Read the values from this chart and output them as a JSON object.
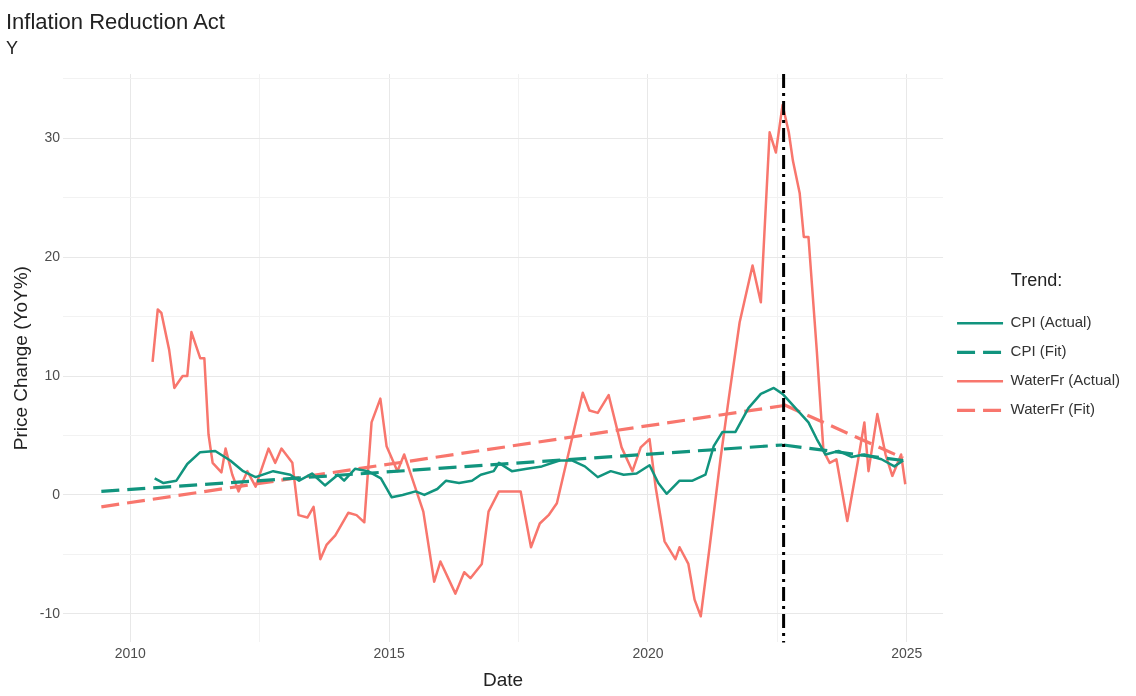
{
  "chart_data": {
    "type": "line",
    "title": "Inflation Reduction Act",
    "subtitle": "Y",
    "xlabel": "Date",
    "ylabel": "Price Change (YoY%)",
    "legend_title": "Trend:",
    "legend": "right",
    "grid": true,
    "marker": "none",
    "xlim": [
      2008.7,
      2025.7
    ],
    "ylim": [
      -12.4,
      35.4
    ],
    "xticks": [
      2010,
      {
        "value": 2012.5,
        "label": null
      },
      2015,
      {
        "value": 2017.5,
        "label": null
      },
      2020,
      {
        "value": 2022.5,
        "label": null
      },
      2025
    ],
    "yticks": [
      -10,
      {
        "value": -5,
        "label": null
      },
      0,
      {
        "value": 5,
        "label": null
      },
      10,
      {
        "value": 15,
        "label": null
      },
      20,
      {
        "value": 25,
        "label": null
      },
      30,
      {
        "value": 35,
        "label": null
      }
    ],
    "ref_lines": [
      {
        "axis": "x",
        "value": 2022.62,
        "color": "#000000",
        "line_style": "dashdot"
      }
    ],
    "series": [
      {
        "name": "CPI (Actual)",
        "color": "#11947e",
        "line_style": "solid",
        "x": [
          2010.47,
          2010.64,
          2010.89,
          2011.1,
          2011.35,
          2011.64,
          2011.93,
          2012.18,
          2012.42,
          2012.76,
          2013.09,
          2013.26,
          2013.51,
          2013.76,
          2014.01,
          2014.13,
          2014.34,
          2014.59,
          2014.84,
          2015.05,
          2015.26,
          2015.51,
          2015.68,
          2015.93,
          2016.1,
          2016.35,
          2016.6,
          2016.77,
          2017.02,
          2017.12,
          2017.37,
          2017.66,
          2017.95,
          2018.29,
          2018.53,
          2018.78,
          2019.03,
          2019.28,
          2019.53,
          2019.78,
          2020.03,
          2020.2,
          2020.36,
          2020.61,
          2020.86,
          2021.11,
          2021.27,
          2021.44,
          2021.69,
          2021.94,
          2022.18,
          2022.43,
          2022.6,
          2022.85,
          2023.1,
          2023.26,
          2023.43,
          2023.68,
          2023.93,
          2024.18,
          2024.51,
          2024.76,
          2024.93
        ],
        "values": [
          1.4,
          1.0,
          1.2,
          2.6,
          3.6,
          3.7,
          2.9,
          2.0,
          1.5,
          2.0,
          1.7,
          1.2,
          1.8,
          0.8,
          1.7,
          1.2,
          2.2,
          2.0,
          1.4,
          -0.2,
          0.0,
          0.3,
          0.0,
          0.5,
          1.2,
          1.0,
          1.2,
          1.7,
          2.0,
          2.7,
          2.0,
          2.2,
          2.4,
          2.9,
          2.9,
          2.4,
          1.5,
          2.0,
          1.7,
          1.8,
          2.5,
          1.0,
          0.1,
          1.2,
          1.2,
          1.7,
          4.1,
          5.3,
          5.3,
          7.3,
          8.5,
          9.0,
          8.5,
          7.3,
          6.1,
          4.7,
          3.4,
          3.7,
          3.2,
          3.4,
          3.0,
          2.4,
          2.9
        ]
      },
      {
        "name": "CPI (Fit)",
        "color": "#11947e",
        "line_style": "dashed",
        "x": [
          2009.44,
          2022.6,
          null,
          2022.62,
          2024.93
        ],
        "values": [
          0.3,
          4.2,
          null,
          4.2,
          2.9
        ]
      },
      {
        "name": "WaterFr (Actual)",
        "color": "#f8766d",
        "line_style": "solid",
        "x": [
          2010.43,
          2010.53,
          2010.6,
          2010.75,
          2010.85,
          2011.01,
          2011.1,
          2011.18,
          2011.35,
          2011.43,
          2011.51,
          2011.59,
          2011.76,
          2011.84,
          2011.97,
          2012.09,
          2012.26,
          2012.42,
          2012.67,
          2012.8,
          2012.92,
          2013.13,
          2013.25,
          2013.42,
          2013.54,
          2013.67,
          2013.79,
          2013.96,
          2014.21,
          2014.37,
          2014.52,
          2014.66,
          2014.83,
          2014.95,
          2015.16,
          2015.29,
          2015.49,
          2015.66,
          2015.87,
          2015.99,
          2016.28,
          2016.45,
          2016.57,
          2016.79,
          2016.92,
          2017.12,
          2017.54,
          2017.74,
          2017.91,
          2018.08,
          2018.24,
          2018.53,
          2018.74,
          2018.87,
          2019.03,
          2019.24,
          2019.49,
          2019.7,
          2019.86,
          2020.03,
          2020.15,
          2020.32,
          2020.53,
          2020.61,
          2020.78,
          2020.9,
          2021.02,
          2021.19,
          2021.4,
          2021.56,
          2021.77,
          2022.02,
          2022.18,
          2022.35,
          2022.47,
          2022.6,
          2022.72,
          2022.8,
          2022.93,
          2023.01,
          2023.1,
          2023.26,
          2023.39,
          2023.51,
          2023.64,
          2023.85,
          2024.05,
          2024.18,
          2024.26,
          2024.43,
          2024.59,
          2024.72,
          2024.89,
          2024.97
        ],
        "values": [
          11.2,
          15.6,
          15.3,
          12.2,
          9.0,
          10.0,
          10.0,
          13.7,
          11.5,
          11.5,
          5.1,
          2.7,
          1.9,
          3.9,
          1.7,
          0.3,
          2.0,
          0.7,
          3.9,
          2.7,
          3.9,
          2.7,
          -1.7,
          -1.9,
          -1.0,
          -5.4,
          -4.2,
          -3.4,
          -1.5,
          -1.7,
          -2.3,
          6.1,
          8.1,
          4.1,
          2.0,
          3.4,
          0.8,
          -1.4,
          -7.3,
          -5.6,
          -8.3,
          -6.5,
          -7.0,
          -5.8,
          -1.4,
          0.3,
          0.3,
          -4.4,
          -2.4,
          -1.7,
          -0.7,
          4.7,
          8.6,
          7.1,
          6.9,
          8.4,
          4.0,
          2.0,
          4.0,
          4.7,
          0.6,
          -3.9,
          -5.4,
          -4.4,
          -5.8,
          -8.8,
          -10.2,
          -4.4,
          3.0,
          8.1,
          14.5,
          19.3,
          16.2,
          30.5,
          28.8,
          32.8,
          30.5,
          28.1,
          25.4,
          21.7,
          21.7,
          12.2,
          3.7,
          2.7,
          3.0,
          -2.2,
          2.7,
          6.1,
          2.0,
          6.8,
          3.4,
          1.6,
          3.4,
          0.9
        ]
      },
      {
        "name": "WaterFr (Fit)",
        "color": "#f8766d",
        "line_style": "dashed",
        "x": [
          2009.44,
          2022.6,
          null,
          2022.62,
          2024.93
        ],
        "values": [
          -1.0,
          7.5,
          null,
          7.6,
          3.1
        ]
      }
    ]
  }
}
